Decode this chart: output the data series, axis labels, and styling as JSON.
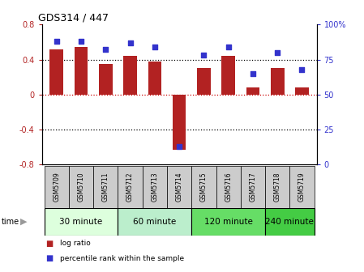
{
  "title": "GDS314 / 447",
  "samples": [
    "GSM5709",
    "GSM5710",
    "GSM5711",
    "GSM5712",
    "GSM5713",
    "GSM5714",
    "GSM5715",
    "GSM5716",
    "GSM5717",
    "GSM5718",
    "GSM5719"
  ],
  "log_ratios": [
    0.52,
    0.54,
    0.35,
    0.44,
    0.38,
    -0.63,
    0.3,
    0.44,
    0.08,
    0.3,
    0.08
  ],
  "percentile_ranks": [
    88,
    88,
    82,
    87,
    84,
    13,
    78,
    84,
    65,
    80,
    68
  ],
  "bar_color": "#B22222",
  "dot_color": "#3333CC",
  "ylim_left": [
    -0.8,
    0.8
  ],
  "ylim_right": [
    0,
    100
  ],
  "yticks_left": [
    -0.8,
    -0.4,
    0.0,
    0.4,
    0.8
  ],
  "ytick_labels_left": [
    "-0.8",
    "-0.4",
    "0",
    "0.4",
    "0.8"
  ],
  "yticks_right": [
    0,
    25,
    50,
    75,
    100
  ],
  "ytick_labels_right": [
    "0",
    "25",
    "50",
    "75",
    "100%"
  ],
  "hlines": [
    -0.4,
    0.0,
    0.4
  ],
  "hline_colors": [
    "black",
    "#CC0000",
    "black"
  ],
  "groups": [
    {
      "label": "30 minute",
      "start": 0,
      "end": 3,
      "color": "#DDFFDD"
    },
    {
      "label": "60 minute",
      "start": 3,
      "end": 6,
      "color": "#BBEECC"
    },
    {
      "label": "120 minute",
      "start": 6,
      "end": 9,
      "color": "#66DD66"
    },
    {
      "label": "240 minute",
      "start": 9,
      "end": 11,
      "color": "#44CC44"
    }
  ],
  "legend_items": [
    {
      "label": "log ratio",
      "color": "#B22222"
    },
    {
      "label": "percentile rank within the sample",
      "color": "#3333CC"
    }
  ],
  "sample_box_color": "#CCCCCC",
  "bg_color": "#FFFFFF"
}
